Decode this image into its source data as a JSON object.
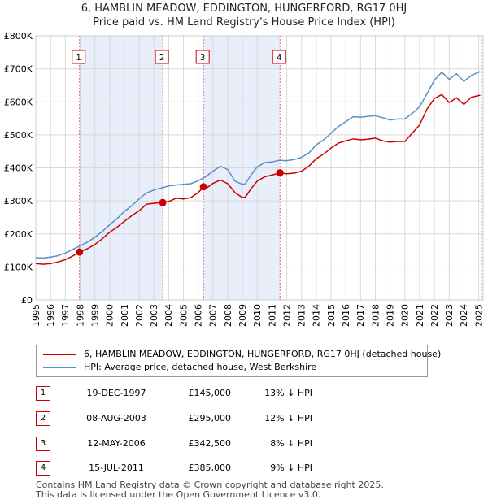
{
  "title_line1": "6, HAMBLIN MEADOW, EDDINGTON, HUNGERFORD, RG17 0HJ",
  "title_line2": "Price paid vs. HM Land Registry's House Price Index (HPI)",
  "chart_data": {
    "type": "line",
    "x_range": [
      1995,
      2025.3
    ],
    "ylim": [
      0,
      800000
    ],
    "y_ticks": [
      0,
      100000,
      200000,
      300000,
      400000,
      500000,
      600000,
      700000,
      800000
    ],
    "y_tick_labels": [
      "£0",
      "£100K",
      "£200K",
      "£300K",
      "£400K",
      "£500K",
      "£600K",
      "£700K",
      "£800K"
    ],
    "x_ticks": [
      1995,
      1996,
      1997,
      1998,
      1999,
      2000,
      2001,
      2002,
      2003,
      2004,
      2005,
      2006,
      2007,
      2008,
      2009,
      2010,
      2011,
      2012,
      2013,
      2014,
      2015,
      2016,
      2017,
      2018,
      2019,
      2020,
      2021,
      2022,
      2023,
      2024,
      2025
    ],
    "x_tick_labels": [
      "1995",
      "1996",
      "1997",
      "1998",
      "1999",
      "2000",
      "2001",
      "2002",
      "2003",
      "2004",
      "2005",
      "2006",
      "2007",
      "2008",
      "2009",
      "2010",
      "2011",
      "2012",
      "2013",
      "2014",
      "2015",
      "2016",
      "2017",
      "2018",
      "2019",
      "2020",
      "2021",
      "2022",
      "2023",
      "2024",
      "2025"
    ],
    "grid": true,
    "series": [
      {
        "name": "6, HAMBLIN MEADOW, EDDINGTON, HUNGERFORD, RG17 0HJ (detached house)",
        "color": "#cc0000",
        "x": [
          1995,
          1995.5,
          1996,
          1996.5,
          1997,
          1997.5,
          1997.96,
          1998.5,
          1999,
          1999.5,
          2000,
          2000.5,
          2001,
          2001.5,
          2002,
          2002.5,
          2003,
          2003.6,
          2004,
          2004.5,
          2005,
          2005.5,
          2006,
          2006.36,
          2006.6,
          2007,
          2007.5,
          2008,
          2008.5,
          2009,
          2009.2,
          2009.6,
          2010,
          2010.5,
          2011,
          2011.54,
          2012,
          2012.5,
          2013,
          2013.5,
          2014,
          2014.5,
          2015,
          2015.5,
          2016,
          2016.5,
          2017,
          2017.5,
          2018,
          2018.5,
          2019,
          2019.5,
          2020,
          2020.5,
          2021,
          2021.5,
          2022,
          2022.5,
          2023,
          2023.5,
          2024,
          2024.5,
          2025.1
        ],
        "values": [
          110000,
          108000,
          110000,
          115000,
          122000,
          133000,
          145000,
          155000,
          168000,
          185000,
          205000,
          220000,
          238000,
          255000,
          270000,
          290000,
          293000,
          295000,
          298000,
          308000,
          306000,
          310000,
          325000,
          342500,
          340000,
          353000,
          363000,
          352000,
          325000,
          310000,
          312000,
          338000,
          360000,
          373000,
          378000,
          385000,
          382000,
          384000,
          390000,
          405000,
          428000,
          442000,
          460000,
          475000,
          482000,
          488000,
          485000,
          487000,
          490000,
          482000,
          478000,
          480000,
          480000,
          505000,
          530000,
          578000,
          610000,
          622000,
          598000,
          612000,
          592000,
          614000,
          620000
        ]
      },
      {
        "name": "HPI: Average price, detached house, West Berkshire",
        "color": "#5b8dc9",
        "x": [
          1995,
          1995.5,
          1996,
          1996.5,
          1997,
          1997.5,
          1998,
          1998.5,
          1999,
          1999.5,
          2000,
          2000.5,
          2001,
          2001.5,
          2002,
          2002.5,
          2003,
          2003.5,
          2004,
          2004.5,
          2005,
          2005.5,
          2006,
          2006.5,
          2007,
          2007.5,
          2008,
          2008.5,
          2009,
          2009.2,
          2009.6,
          2010,
          2010.5,
          2011,
          2011.5,
          2012,
          2012.5,
          2013,
          2013.5,
          2014,
          2014.5,
          2015,
          2015.5,
          2016,
          2016.5,
          2017,
          2017.5,
          2018,
          2018.5,
          2019,
          2019.5,
          2020,
          2020.5,
          2021,
          2021.5,
          2022,
          2022.5,
          2023,
          2023.5,
          2024,
          2024.5,
          2025.1
        ],
        "values": [
          128000,
          127000,
          130000,
          134000,
          142000,
          153000,
          164000,
          175000,
          190000,
          207000,
          228000,
          246000,
          268000,
          285000,
          306000,
          324000,
          333000,
          339000,
          345000,
          348000,
          350000,
          352000,
          361000,
          373000,
          390000,
          405000,
          395000,
          360000,
          350000,
          352000,
          380000,
          403000,
          416000,
          418000,
          423000,
          422000,
          425000,
          432000,
          445000,
          470000,
          485000,
          505000,
          525000,
          540000,
          555000,
          553000,
          556000,
          558000,
          552000,
          545000,
          548000,
          548000,
          565000,
          585000,
          625000,
          665000,
          690000,
          668000,
          685000,
          662000,
          680000,
          692000
        ]
      }
    ],
    "sale_markers": [
      {
        "label": "1",
        "x": 1997.96,
        "value": 145000
      },
      {
        "label": "2",
        "x": 2003.6,
        "value": 295000
      },
      {
        "label": "3",
        "x": 2006.36,
        "value": 342500
      },
      {
        "label": "4",
        "x": 2011.54,
        "value": 385000
      }
    ],
    "shaded_ranges": [
      [
        1997.96,
        2003.6
      ],
      [
        2006.36,
        2011.54
      ]
    ]
  },
  "legend": {
    "property_label": "6, HAMBLIN MEADOW, EDDINGTON, HUNGERFORD, RG17 0HJ (detached house)",
    "hpi_label": "HPI: Average price, detached house, West Berkshire",
    "property_color": "#cc0000",
    "hpi_color": "#5b8dc9"
  },
  "sales": [
    {
      "num": "1",
      "date": "19-DEC-1997",
      "price": "£145,000",
      "hpi": "13% ↓ HPI"
    },
    {
      "num": "2",
      "date": "08-AUG-2003",
      "price": "£295,000",
      "hpi": "12% ↓ HPI"
    },
    {
      "num": "3",
      "date": "12-MAY-2006",
      "price": "£342,500",
      "hpi": "8% ↓ HPI"
    },
    {
      "num": "4",
      "date": "15-JUL-2011",
      "price": "£385,000",
      "hpi": "9% ↓ HPI"
    }
  ],
  "footer_line1": "Contains HM Land Registry data © Crown copyright and database right 2025.",
  "footer_line2": "This data is licensed under the Open Government Licence v3.0."
}
